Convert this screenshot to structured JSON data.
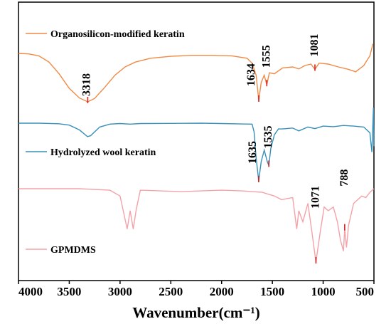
{
  "chart_data": {
    "type": "line",
    "title": "",
    "xlabel": "Wavenumber(cm⁻¹)",
    "ylabel": "",
    "xlim": [
      4000,
      500
    ],
    "x_reversed": true,
    "xticks": [
      "4000",
      "3500",
      "3000",
      "2500",
      "2000",
      "1500",
      "1000",
      "500"
    ],
    "legend_placement": "inline-left",
    "series": [
      {
        "name": "Organosilicon-modified keratin",
        "color": "#f08a46",
        "points": [
          [
            4000,
            0.0
          ],
          [
            3900,
            0.01
          ],
          [
            3800,
            0.05
          ],
          [
            3700,
            0.18
          ],
          [
            3600,
            0.42
          ],
          [
            3500,
            0.72
          ],
          [
            3400,
            0.92
          ],
          [
            3318,
            1.0
          ],
          [
            3250,
            0.93
          ],
          [
            3150,
            0.7
          ],
          [
            3050,
            0.45
          ],
          [
            2950,
            0.28
          ],
          [
            2850,
            0.18
          ],
          [
            2700,
            0.1
          ],
          [
            2500,
            0.06
          ],
          [
            2300,
            0.04
          ],
          [
            2100,
            0.04
          ],
          [
            1900,
            0.05
          ],
          [
            1750,
            0.1
          ],
          [
            1700,
            0.2
          ],
          [
            1660,
            0.45
          ],
          [
            1634,
            0.97
          ],
          [
            1610,
            0.6
          ],
          [
            1580,
            0.45
          ],
          [
            1555,
            0.65
          ],
          [
            1530,
            0.4
          ],
          [
            1480,
            0.42
          ],
          [
            1400,
            0.3
          ],
          [
            1300,
            0.28
          ],
          [
            1240,
            0.32
          ],
          [
            1180,
            0.25
          ],
          [
            1120,
            0.22
          ],
          [
            1081,
            0.33
          ],
          [
            1040,
            0.2
          ],
          [
            950,
            0.22
          ],
          [
            850,
            0.28
          ],
          [
            750,
            0.33
          ],
          [
            680,
            0.38
          ],
          [
            600,
            0.25
          ],
          [
            540,
            0.05
          ],
          [
            510,
            -0.2
          ]
        ]
      },
      {
        "name": "Hydrolyzed wool keratin",
        "color": "#3790b9",
        "points": [
          [
            4000,
            0.0
          ],
          [
            3800,
            0.0
          ],
          [
            3600,
            0.03
          ],
          [
            3500,
            0.1
          ],
          [
            3400,
            0.35
          ],
          [
            3320,
            0.7
          ],
          [
            3290,
            0.65
          ],
          [
            3200,
            0.2
          ],
          [
            3100,
            0.05
          ],
          [
            3000,
            0.02
          ],
          [
            2900,
            0.05
          ],
          [
            2800,
            0.02
          ],
          [
            2500,
            0.01
          ],
          [
            2200,
            0.0
          ],
          [
            2000,
            0.02
          ],
          [
            1800,
            0.04
          ],
          [
            1700,
            0.05
          ],
          [
            1680,
            0.45
          ],
          [
            1660,
            1.8
          ],
          [
            1635,
            3.0
          ],
          [
            1610,
            2.0
          ],
          [
            1580,
            1.4
          ],
          [
            1550,
            2.0
          ],
          [
            1535,
            2.2
          ],
          [
            1515,
            1.3
          ],
          [
            1480,
            0.6
          ],
          [
            1440,
            0.3
          ],
          [
            1400,
            0.3
          ],
          [
            1300,
            0.25
          ],
          [
            1240,
            0.4
          ],
          [
            1150,
            0.2
          ],
          [
            1080,
            0.28
          ],
          [
            1000,
            0.15
          ],
          [
            900,
            0.18
          ],
          [
            800,
            0.12
          ],
          [
            700,
            0.15
          ],
          [
            600,
            0.2
          ],
          [
            540,
            0.5
          ],
          [
            520,
            1.5
          ],
          [
            505,
            -0.8
          ],
          [
            500,
            1.2
          ]
        ]
      },
      {
        "name": "GPMDMS",
        "color": "#f4a2a8",
        "points": [
          [
            4000,
            0.0
          ],
          [
            3700,
            0.0
          ],
          [
            3400,
            0.0
          ],
          [
            3100,
            0.02
          ],
          [
            3000,
            0.1
          ],
          [
            2930,
            0.55
          ],
          [
            2900,
            0.3
          ],
          [
            2870,
            0.55
          ],
          [
            2840,
            0.28
          ],
          [
            2800,
            0.02
          ],
          [
            2400,
            0.04
          ],
          [
            2000,
            0.02
          ],
          [
            1800,
            0.03
          ],
          [
            1600,
            0.05
          ],
          [
            1480,
            0.1
          ],
          [
            1450,
            0.12
          ],
          [
            1410,
            0.15
          ],
          [
            1300,
            0.12
          ],
          [
            1260,
            0.55
          ],
          [
            1240,
            0.3
          ],
          [
            1200,
            0.45
          ],
          [
            1150,
            0.2
          ],
          [
            1110,
            0.6
          ],
          [
            1071,
            1.0
          ],
          [
            1030,
            0.6
          ],
          [
            990,
            0.25
          ],
          [
            950,
            0.3
          ],
          [
            900,
            0.25
          ],
          [
            860,
            0.45
          ],
          [
            830,
            0.7
          ],
          [
            800,
            0.85
          ],
          [
            788,
            0.55
          ],
          [
            770,
            0.8
          ],
          [
            750,
            0.5
          ],
          [
            700,
            0.2
          ],
          [
            620,
            0.1
          ],
          [
            580,
            0.12
          ],
          [
            540,
            0.05
          ],
          [
            500,
            0.0
          ]
        ]
      }
    ],
    "annotations": [
      {
        "text": "3318",
        "x": 3318,
        "series": 0
      },
      {
        "text": "1634",
        "x": 1634,
        "series": 0
      },
      {
        "text": "1555",
        "x": 1555,
        "series": 0
      },
      {
        "text": "1081",
        "x": 1081,
        "series": 0
      },
      {
        "text": "1635",
        "x": 1635,
        "series": 1
      },
      {
        "text": "1535",
        "x": 1535,
        "series": 1
      },
      {
        "text": "1071",
        "x": 1071,
        "series": 2
      },
      {
        "text": "788",
        "x": 788,
        "series": 2
      }
    ]
  }
}
